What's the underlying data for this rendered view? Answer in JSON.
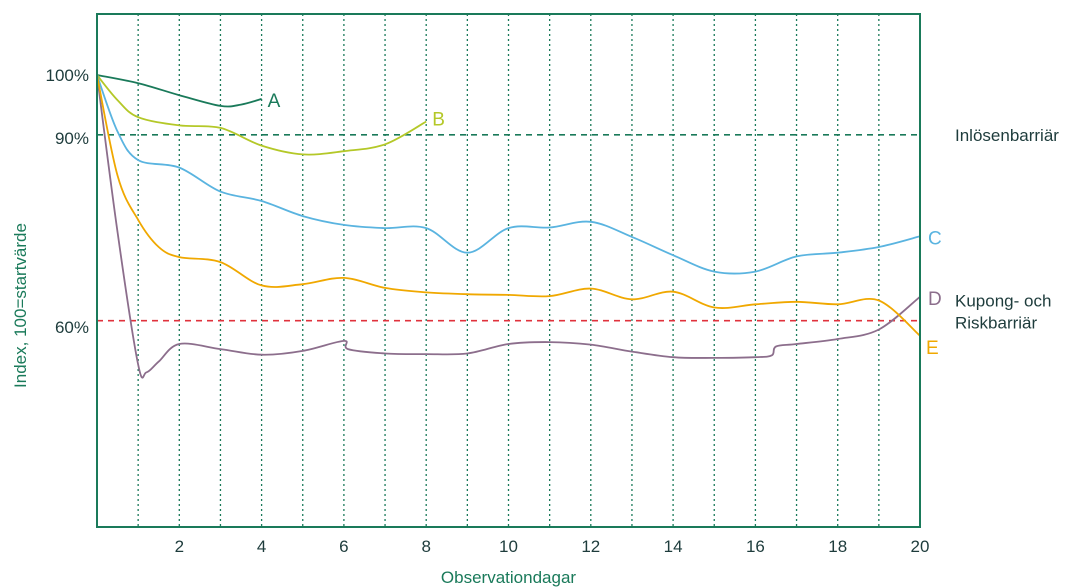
{
  "colors": {
    "frame": "#1a7a5a",
    "grid": "#1a7a5a",
    "text": "#1e3c3c",
    "redeem_line": "#1a7a5a",
    "coupon_line": "#e0323c"
  },
  "chart_data": {
    "type": "line",
    "xlabel": "Observationdagar",
    "ylabel": "Index, 100=startvärde",
    "xlim": [
      0,
      20
    ],
    "ylim": [
      30,
      108
    ],
    "x_ticks": [
      2,
      4,
      6,
      8,
      10,
      12,
      14,
      16,
      18,
      20
    ],
    "y_ticks": [
      {
        "value": 100,
        "label": "100%"
      },
      {
        "value": 90,
        "label": "90%"
      },
      {
        "value": 60,
        "label": "60%"
      }
    ],
    "vertical_grid": [
      1,
      2,
      3,
      4,
      5,
      6,
      7,
      8,
      9,
      10,
      11,
      12,
      13,
      14,
      15,
      16,
      17,
      18,
      19
    ],
    "reference_lines": [
      {
        "name": "Inlösenbarriär",
        "y": 90.5,
        "color": "#1a7a5a"
      },
      {
        "name": "Kupong- och Riskbarriär",
        "y": 61,
        "color": "#e0323c",
        "label_lines": [
          "Kupong- och",
          "Riskbarriär"
        ]
      }
    ],
    "series": [
      {
        "name": "A",
        "color": "#1a7a5a",
        "x": [
          0,
          1,
          2,
          3,
          3.5,
          4
        ],
        "y": [
          100,
          98.7,
          96.8,
          95.1,
          95.3,
          96.2
        ]
      },
      {
        "name": "B",
        "color": "#b4c828",
        "x": [
          0,
          0.5,
          1,
          2,
          3,
          4,
          5,
          6,
          7,
          8
        ],
        "y": [
          100,
          96,
          93.3,
          92,
          91.6,
          88.8,
          87.4,
          87.9,
          89,
          92.6
        ]
      },
      {
        "name": "C",
        "color": "#5ab4e0",
        "x": [
          0,
          0.5,
          1,
          2,
          3,
          4,
          5,
          6,
          7,
          8,
          9,
          10,
          11,
          12,
          13,
          14,
          15,
          16,
          17,
          18,
          19,
          20
        ],
        "y": [
          100,
          91,
          86.5,
          85.3,
          81.5,
          80,
          77.6,
          76.2,
          75.7,
          75.7,
          71.8,
          75.7,
          75.8,
          76.7,
          74.3,
          71.4,
          68.8,
          68.8,
          71.2,
          71.8,
          72.7,
          74.4
        ]
      },
      {
        "name": "D",
        "color": "#8c6e8c",
        "x": [
          0,
          0.5,
          1,
          1.2,
          1.5,
          2,
          3,
          4,
          5,
          6,
          6.1,
          7,
          8,
          9,
          10,
          11,
          12,
          13,
          14,
          15,
          16,
          16.4,
          16.5,
          17,
          18,
          19,
          20
        ],
        "y": [
          100,
          75,
          54,
          52.8,
          54.5,
          57.3,
          56.5,
          55.6,
          56.2,
          57.8,
          56.5,
          55.8,
          55.7,
          55.8,
          57.3,
          57.6,
          57.2,
          56.1,
          55.2,
          55.1,
          55.2,
          55.5,
          56.9,
          57.3,
          58.1,
          59.6,
          64.8
        ]
      },
      {
        "name": "E",
        "color": "#f0a800",
        "x": [
          0,
          0.5,
          1,
          1.5,
          2,
          3,
          4,
          5,
          6,
          7,
          8,
          9,
          10,
          11,
          12,
          13,
          14,
          15,
          16,
          17,
          18,
          19,
          20
        ],
        "y": [
          100,
          84,
          77,
          72.7,
          71.1,
          70.3,
          66.6,
          66.8,
          67.8,
          66.2,
          65.5,
          65.2,
          65.1,
          64.9,
          66.1,
          64.4,
          65.6,
          63.1,
          63.6,
          64,
          63.6,
          64.2,
          58.6
        ]
      }
    ]
  }
}
